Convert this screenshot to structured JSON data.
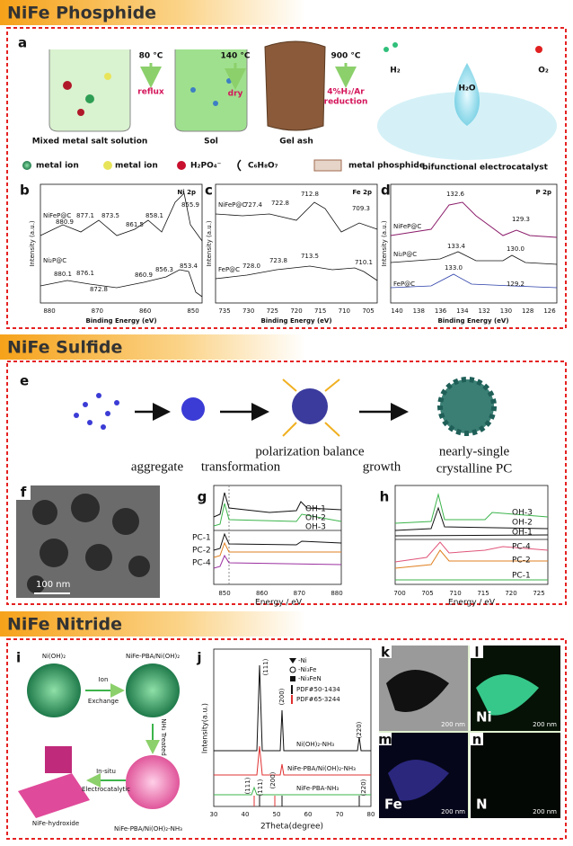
{
  "phosphide": {
    "title": "NiFe Phosphide",
    "a": {
      "label": "a",
      "step1_temp": "80 °C",
      "step1": "reflux",
      "step2_temp": "140 °C",
      "step2": "dry",
      "step3_temp": "900 °C",
      "step3": [
        "4%H₂/Ar",
        "reduction"
      ],
      "stages": [
        "Mixed metal salt solution",
        "Sol",
        "Gel ash"
      ],
      "gases": [
        "H₂",
        "H₂O",
        "O₂"
      ],
      "catalyst": "bifunctional electrocatalyst",
      "legend": [
        "metal ion",
        "metal ion",
        "H₂PO₄⁻",
        "C₆H₈O₇",
        "metal phosphide"
      ]
    },
    "b": {
      "label": "b",
      "element": "Ni 2p",
      "samples": [
        "NiFeP@C",
        "Ni₂P@C"
      ],
      "peaks_top": [
        "880.9",
        "877.1",
        "873.5",
        "861.5",
        "858.1",
        "855.9"
      ],
      "peaks_bottom": [
        "880.1",
        "876.1",
        "872.8",
        "860.9",
        "856.3",
        "853.4"
      ],
      "ylabel": "Intensity (a.u.)",
      "xticks": [
        "880",
        "870",
        "860",
        "850"
      ],
      "xlabel": "Binding Energy (eV)"
    },
    "c": {
      "label": "c",
      "element": "Fe 2p",
      "samples": [
        "NiFeP@C",
        "FeP@C"
      ],
      "peaks_top": [
        "727.4",
        "722.8",
        "712.8",
        "709.3"
      ],
      "peaks_bottom": [
        "728.0",
        "723.8",
        "713.5",
        "710.1"
      ],
      "ylabel": "Intensity (a.u.)",
      "xticks": [
        "735",
        "730",
        "725",
        "720",
        "715",
        "710",
        "705"
      ],
      "xlabel": "Binding Energy (eV)"
    },
    "d": {
      "label": "d",
      "element": "P 2p",
      "samples": [
        "NiFeP@C",
        "Ni₂P@C",
        "FeP@C"
      ],
      "peaks": [
        "132.6",
        "129.3",
        "133.4",
        "130.0",
        "133.0",
        "129.2"
      ],
      "ylabel": "Intensity (a.u.)",
      "xticks": [
        "140",
        "138",
        "136",
        "134",
        "132",
        "130",
        "128",
        "126"
      ],
      "xlabel": "Binding Energy (eV)"
    }
  },
  "sulfide": {
    "title": "NiFe Sulfide",
    "e": {
      "label": "e",
      "steps": [
        "aggregate",
        "transformation",
        "polarization balance",
        "growth",
        "nearly-single",
        "crystalline PC"
      ]
    },
    "f": {
      "label": "f",
      "scale": "100 nm"
    },
    "g": {
      "label": "g",
      "oh": [
        "OH-1",
        "OH-2",
        "OH-3"
      ],
      "pc": [
        "PC-1",
        "PC-2",
        "PC-4"
      ],
      "xticks": [
        "850",
        "860",
        "870",
        "880"
      ],
      "xlabel": "Energy / eV"
    },
    "h": {
      "label": "h",
      "oh": [
        "OH-3",
        "OH-2",
        "OH-1"
      ],
      "pc": [
        "PC-4",
        "PC-2",
        "PC-1"
      ],
      "xticks": [
        "700",
        "705",
        "710",
        "715",
        "720",
        "725"
      ],
      "xlabel": "Energy / eV"
    }
  },
  "nitride": {
    "title": "NiFe Nitride",
    "i": {
      "label": "i",
      "structures": [
        "Ni(OH)₂",
        "NiFe-PBA/Ni(OH)₂",
        "NiFe-PBA/Ni(OH)₂-NH₃",
        "NiFe-hydroxide"
      ],
      "arrows": [
        "Ion",
        "Exchange",
        "NH₃ Treated",
        "In-situ",
        "Electrocatalytic"
      ]
    },
    "j": {
      "label": "j",
      "legend": [
        "-Ni",
        "-Ni₃Fe",
        "-Ni₃FeN",
        "PDF#50-1434",
        "PDF#65-3244"
      ],
      "planes_top": [
        "(111)",
        "(200)",
        "(220)"
      ],
      "samples": [
        "Ni(OH)₂-NH₃",
        "NiFe-PBA/Ni(OH)₂-NH₃",
        "NiFe-PBA-NH₃"
      ],
      "planes_bottom": [
        "(111)",
        "(111)",
        "(200)",
        "(220)"
      ],
      "ylabel": "Intensity(a.u.)",
      "xticks": [
        "30",
        "40",
        "50",
        "60",
        "70",
        "80"
      ],
      "xlabel": "2Theta(degree)"
    },
    "maps": [
      {
        "label": "k",
        "scale": "200 nm"
      },
      {
        "label": "l",
        "scale": "200 nm",
        "element": "Ni"
      },
      {
        "label": "m",
        "scale": "200 nm",
        "element": "Fe"
      },
      {
        "label": "n",
        "scale": "200 nm",
        "element": "N"
      }
    ]
  }
}
